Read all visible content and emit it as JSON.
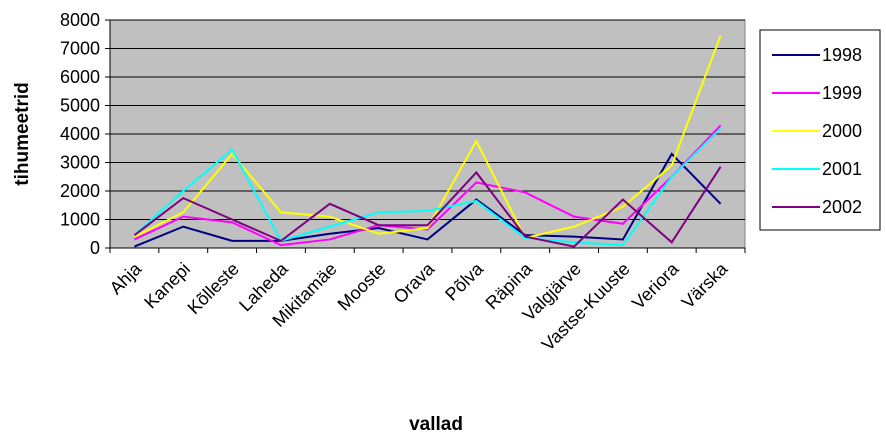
{
  "chart_data": {
    "type": "line",
    "xlabel": "vallad",
    "ylabel": "tihumeetrid",
    "ylim": [
      0,
      8000
    ],
    "yticks": [
      0,
      1000,
      2000,
      3000,
      4000,
      5000,
      6000,
      7000,
      8000
    ],
    "grid": true,
    "legend_position": "right",
    "plot_background": "#c0c0c0",
    "categories": [
      "Ahja",
      "Kanepi",
      "Kõlleste",
      "Laheda",
      "Mikitamäe",
      "Mooste",
      "Orava",
      "Põlva",
      "Räpina",
      "Valgjärve",
      "Vastse-Kuuste",
      "Veriora",
      "Värska"
    ],
    "series": [
      {
        "name": "1998",
        "color": "#000080",
        "values": [
          50,
          750,
          250,
          250,
          500,
          700,
          300,
          1700,
          450,
          400,
          300,
          3300,
          1550
        ]
      },
      {
        "name": "1999",
        "color": "#ff00ff",
        "values": [
          300,
          1100,
          900,
          100,
          300,
          800,
          650,
          2300,
          1950,
          1100,
          850,
          2500,
          4300
        ]
      },
      {
        "name": "2000",
        "color": "#ffff00",
        "values": [
          400,
          1250,
          3300,
          1250,
          1100,
          500,
          700,
          3750,
          350,
          750,
          1450,
          2900,
          7450
        ]
      },
      {
        "name": "2001",
        "color": "#00ffff",
        "values": [
          450,
          2000,
          3450,
          250,
          750,
          1250,
          1300,
          1650,
          350,
          200,
          100,
          2500,
          4200
        ]
      },
      {
        "name": "2002",
        "color": "#800080",
        "values": [
          450,
          1750,
          1000,
          250,
          1550,
          800,
          800,
          2650,
          400,
          50,
          1700,
          200,
          2850
        ]
      }
    ]
  }
}
